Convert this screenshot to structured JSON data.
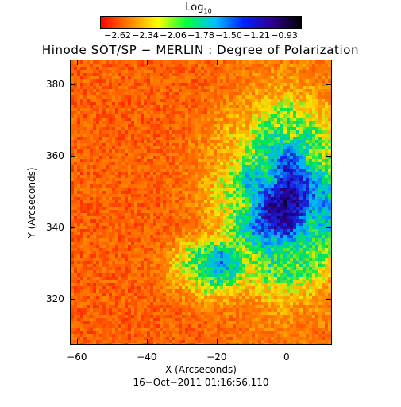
{
  "colorbar": {
    "title": "Log",
    "title_sub": "10",
    "ticks": [
      "−2.62",
      "−2.34",
      "−2.06",
      "−1.78",
      "−1.50",
      "−1.21",
      "−0.93"
    ],
    "colors": [
      "#ff0000",
      "#ff8000",
      "#ffff00",
      "#00ff40",
      "#00c0ff",
      "#0020ff",
      "#300090",
      "#000000"
    ]
  },
  "main_title": "Hinode SOT/SP − MERLIN : Degree of Polarization",
  "timestamp": "16−Oct−2011 01:16:56.110",
  "chart_data": {
    "type": "heatmap",
    "title": "Hinode SOT/SP − MERLIN : Degree of Polarization",
    "xlabel": "X (Arcseconds)",
    "ylabel": "Y (Arcseconds)",
    "xlim": [
      -62,
      13
    ],
    "ylim": [
      307,
      387
    ],
    "xticks": [
      -60,
      -40,
      -20,
      0
    ],
    "yticks": [
      320,
      340,
      360,
      380
    ],
    "color_scale": "log10",
    "color_range": [
      -2.62,
      -0.93
    ],
    "colorbar_ticks": [
      -2.62,
      -2.34,
      -2.06,
      -1.78,
      -1.5,
      -1.21,
      -0.93
    ],
    "description_regions": [
      {
        "region": "left and upper",
        "level": "low (~ -2.5, orange/red)"
      },
      {
        "region": "right-center and lower-right",
        "level": "high (~ -1.2 to -0.9, blue/black)"
      }
    ]
  }
}
